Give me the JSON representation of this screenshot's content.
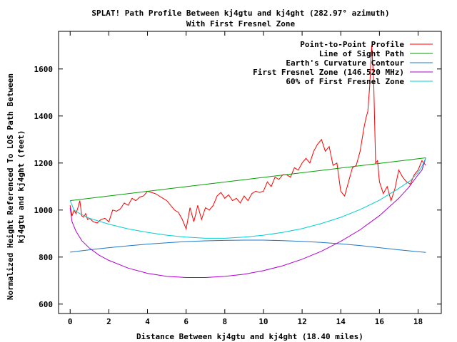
{
  "chart_data": {
    "type": "line",
    "title": "SPLAT! Path Profile Between kj4gtu and kj4ght (282.97° azimuth)",
    "subtitle": "With First Fresnel Zone",
    "xlabel": "Distance Between kj4gtu and kj4ght (18.40 miles)",
    "ylabel_line1": "Normalized Height Referenced To LOS Path Between",
    "ylabel_line2": "kj4gtu and kj4ght (feet)",
    "xlim": [
      -0.6,
      19.2
    ],
    "ylim": [
      560,
      1760
    ],
    "x_ticks": [
      0,
      2,
      4,
      6,
      8,
      10,
      12,
      14,
      16,
      18
    ],
    "y_ticks": [
      600,
      800,
      1000,
      1200,
      1400,
      1600
    ],
    "legend_position": "top-right",
    "series": [
      {
        "name": "Point-to-Point Profile",
        "color": "#ff0000",
        "x": [
          0,
          0.1,
          0.2,
          0.3,
          0.4,
          0.5,
          0.6,
          0.7,
          0.8,
          0.9,
          1.0,
          1.2,
          1.4,
          1.6,
          1.8,
          2.0,
          2.2,
          2.4,
          2.6,
          2.8,
          3.0,
          3.2,
          3.4,
          3.6,
          3.8,
          4.0,
          4.2,
          4.4,
          4.6,
          4.8,
          5.0,
          5.2,
          5.4,
          5.6,
          5.8,
          6.0,
          6.2,
          6.4,
          6.6,
          6.8,
          7.0,
          7.2,
          7.4,
          7.6,
          7.8,
          8.0,
          8.2,
          8.4,
          8.6,
          8.8,
          9.0,
          9.2,
          9.4,
          9.6,
          9.8,
          10.0,
          10.2,
          10.4,
          10.6,
          10.8,
          11.0,
          11.2,
          11.4,
          11.6,
          11.8,
          12.0,
          12.2,
          12.4,
          12.6,
          12.8,
          13.0,
          13.2,
          13.4,
          13.6,
          13.8,
          14.0,
          14.2,
          14.4,
          14.6,
          14.8,
          15.0,
          15.1,
          15.2,
          15.3,
          15.4,
          15.5,
          15.6,
          15.7,
          15.8,
          15.9,
          16.0,
          16.2,
          16.4,
          16.6,
          16.8,
          17.0,
          17.2,
          17.4,
          17.6,
          17.8,
          18.0,
          18.2,
          18.4
        ],
        "values": [
          1020,
          975,
          1000,
          985,
          1010,
          1040,
          975,
          970,
          985,
          960,
          965,
          950,
          945,
          960,
          965,
          950,
          1000,
          995,
          1005,
          1030,
          1020,
          1050,
          1040,
          1055,
          1060,
          1080,
          1075,
          1070,
          1060,
          1050,
          1040,
          1020,
          1000,
          990,
          960,
          920,
          1010,
          950,
          1020,
          960,
          1010,
          1000,
          1020,
          1060,
          1075,
          1050,
          1065,
          1040,
          1050,
          1030,
          1060,
          1040,
          1070,
          1080,
          1075,
          1080,
          1120,
          1100,
          1140,
          1130,
          1150,
          1150,
          1140,
          1180,
          1170,
          1200,
          1220,
          1200,
          1250,
          1280,
          1300,
          1250,
          1270,
          1190,
          1200,
          1080,
          1060,
          1120,
          1180,
          1190,
          1250,
          1300,
          1350,
          1390,
          1420,
          1530,
          1700,
          1550,
          1200,
          1210,
          1120,
          1070,
          1100,
          1040,
          1090,
          1170,
          1140,
          1120,
          1110,
          1150,
          1170,
          1210,
          1190
        ]
      },
      {
        "name": "Line of Sight Path",
        "color": "#00a000",
        "x": [
          0,
          18.4
        ],
        "values": [
          1040,
          1222
        ]
      },
      {
        "name": "Earth's Curvature Contour",
        "color": "#1e78c8",
        "x": [
          0,
          1,
          2,
          3,
          4,
          5,
          6,
          7,
          8,
          9,
          10,
          11,
          12,
          13,
          14,
          15,
          16,
          17,
          18,
          18.4
        ],
        "values": [
          821,
          831,
          840,
          848,
          855,
          861,
          866,
          869,
          871,
          872,
          872,
          870,
          867,
          862,
          856,
          849,
          840,
          831,
          823,
          820
        ]
      },
      {
        "name": "First Fresnel Zone (146.520 MHz)",
        "color": "#b000d0",
        "x": [
          0,
          0.1,
          0.3,
          0.6,
          1,
          1.5,
          2,
          3,
          4,
          5,
          6,
          7,
          8,
          9,
          10,
          11,
          12,
          13,
          14,
          15,
          16,
          17,
          17.5,
          18,
          18.2,
          18.4
        ],
        "values": [
          1010,
          950,
          910,
          870,
          838,
          808,
          786,
          753,
          731,
          718,
          713,
          713,
          718,
          727,
          742,
          763,
          791,
          825,
          867,
          916,
          976,
          1050,
          1095,
          1150,
          1170,
          1222
        ]
      },
      {
        "name": "60% of First Fresnel Zone",
        "color": "#00d0d0",
        "x": [
          0,
          0.2,
          0.5,
          1,
          2,
          3,
          4,
          5,
          6,
          7,
          8,
          9,
          10,
          11,
          12,
          13,
          14,
          15,
          16,
          17,
          17.6,
          18,
          18.2,
          18.4
        ],
        "values": [
          1040,
          1000,
          985,
          965,
          940,
          920,
          905,
          893,
          885,
          880,
          880,
          885,
          893,
          905,
          921,
          943,
          969,
          1002,
          1042,
          1092,
          1125,
          1160,
          1185,
          1222
        ]
      }
    ]
  }
}
